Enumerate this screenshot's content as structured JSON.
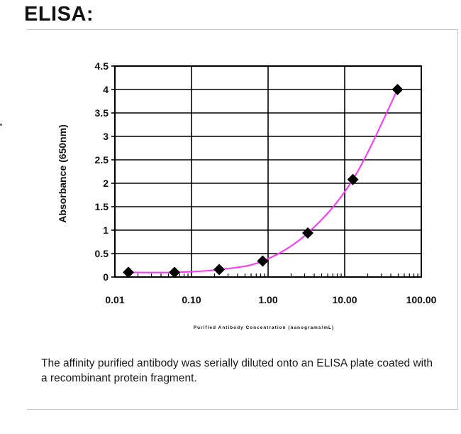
{
  "page": {
    "title": "ELISA:",
    "caption": "The affinity purified antibody was serially diluted onto an ELISA plate coated with a recombinant protein fragment."
  },
  "colors": {
    "line": "#ff33ff",
    "marker": "#000000",
    "grid": "#000000",
    "panel_border": "#c9c9c9"
  },
  "chart_data": {
    "type": "scatter",
    "title": "",
    "xlabel": "Purified Antibody Concentration (nanograms/mL)",
    "ylabel": "Absorbance (650nm)",
    "xscale": "log",
    "xlim": [
      0.01,
      100
    ],
    "ylim": [
      0,
      4.5
    ],
    "grid": true,
    "legend": "none",
    "x_tick_labels": [
      "0.01",
      "0.10",
      "1.00",
      "10.00",
      "100.00"
    ],
    "y_tick_labels": [
      "0",
      "0.5",
      "1",
      "1.5",
      "2",
      "2.5",
      "3",
      "3.5",
      "4",
      "4.5"
    ],
    "series": [
      {
        "x": [
          0.015,
          0.06,
          0.23,
          0.85,
          3.3,
          12.8,
          49
        ],
        "y": [
          0.1,
          0.1,
          0.16,
          0.34,
          0.94,
          2.08,
          4.0
        ]
      }
    ]
  }
}
